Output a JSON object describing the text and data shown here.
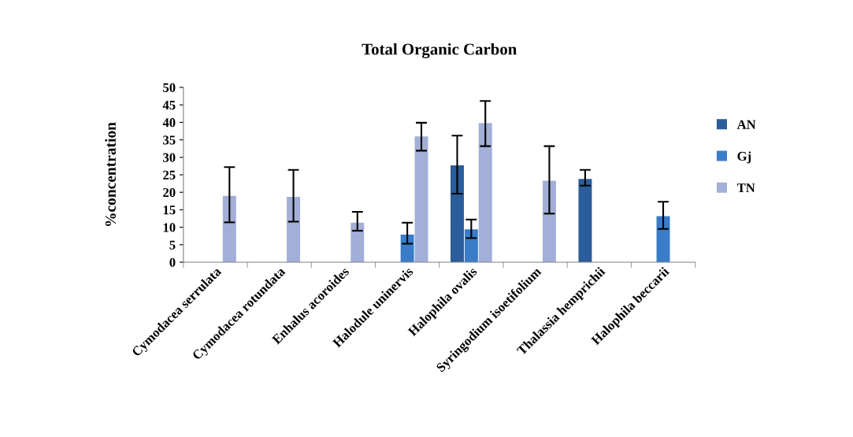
{
  "chart_data": {
    "type": "bar",
    "title": "Total Organic Carbon",
    "ylabel": "%concentration",
    "categories": [
      "Cymodacea serrulata",
      "Cymodacea rotundata",
      "Enhalus acoroides",
      "Halodule uninervis",
      "Halophila ovalis",
      "Syringodium isoetifolium",
      "Thalassia hemprichii",
      "Halophila beccarii"
    ],
    "series": [
      {
        "name": "AN",
        "color": "#2a5d9a",
        "values": [
          null,
          null,
          null,
          null,
          27.7,
          null,
          23.8,
          null
        ],
        "errors": [
          null,
          null,
          null,
          null,
          [
            19.6,
            36.2
          ],
          null,
          [
            21.9,
            26.4
          ],
          null
        ]
      },
      {
        "name": "Gj",
        "color": "#3a7cc8",
        "values": [
          null,
          null,
          null,
          7.9,
          9.4,
          null,
          null,
          13.2
        ],
        "errors": [
          null,
          null,
          null,
          [
            5.3,
            11.3
          ],
          [
            6.9,
            12.2
          ],
          null,
          null,
          [
            9.5,
            17.3
          ]
        ]
      },
      {
        "name": "TN",
        "color": "#a3afd8",
        "values": [
          19.0,
          18.7,
          11.3,
          36.0,
          39.8,
          23.3,
          null,
          null
        ],
        "errors": [
          [
            11.4,
            27.2
          ],
          [
            11.6,
            26.4
          ],
          [
            9.0,
            14.4
          ],
          [
            31.9,
            39.9
          ],
          [
            33.2,
            46.1
          ],
          [
            13.9,
            33.2
          ],
          null,
          null
        ]
      }
    ],
    "ylim": [
      0,
      50
    ],
    "yticks": [
      0,
      5,
      10,
      15,
      20,
      25,
      30,
      35,
      40,
      45,
      50
    ],
    "grid": false,
    "legend": "right"
  }
}
